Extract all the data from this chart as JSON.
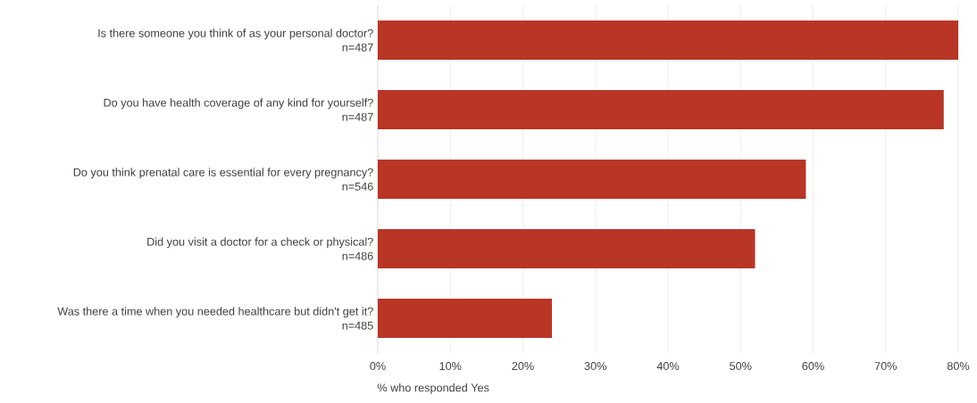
{
  "chart_data": {
    "type": "bar",
    "orientation": "horizontal",
    "xlabel": "% who responded Yes",
    "categories": [
      "Is there someone you think of as your personal doctor?\nn=487",
      "Do you have health coverage of any kind for yourself?\nn=487",
      "Do you think prenatal care is essential for every pregnancy?\nn=546",
      "Did you visit a doctor for a check or physical?\nn=486",
      "Was there a time when you needed healthcare but didn't get it?\nn=485"
    ],
    "values": [
      80,
      78,
      59,
      52,
      24
    ],
    "color": "#b93526",
    "xlim": [
      0,
      80
    ],
    "xticks": [
      {
        "value": 0,
        "label": "0%"
      },
      {
        "value": 10,
        "label": "10%"
      },
      {
        "value": 20,
        "label": "20%"
      },
      {
        "value": 30,
        "label": "30%"
      },
      {
        "value": 40,
        "label": "40%"
      },
      {
        "value": 50,
        "label": "50%"
      },
      {
        "value": 60,
        "label": "60%"
      },
      {
        "value": 70,
        "label": "70%"
      },
      {
        "value": 80,
        "label": "80%"
      }
    ],
    "grid": "x"
  }
}
